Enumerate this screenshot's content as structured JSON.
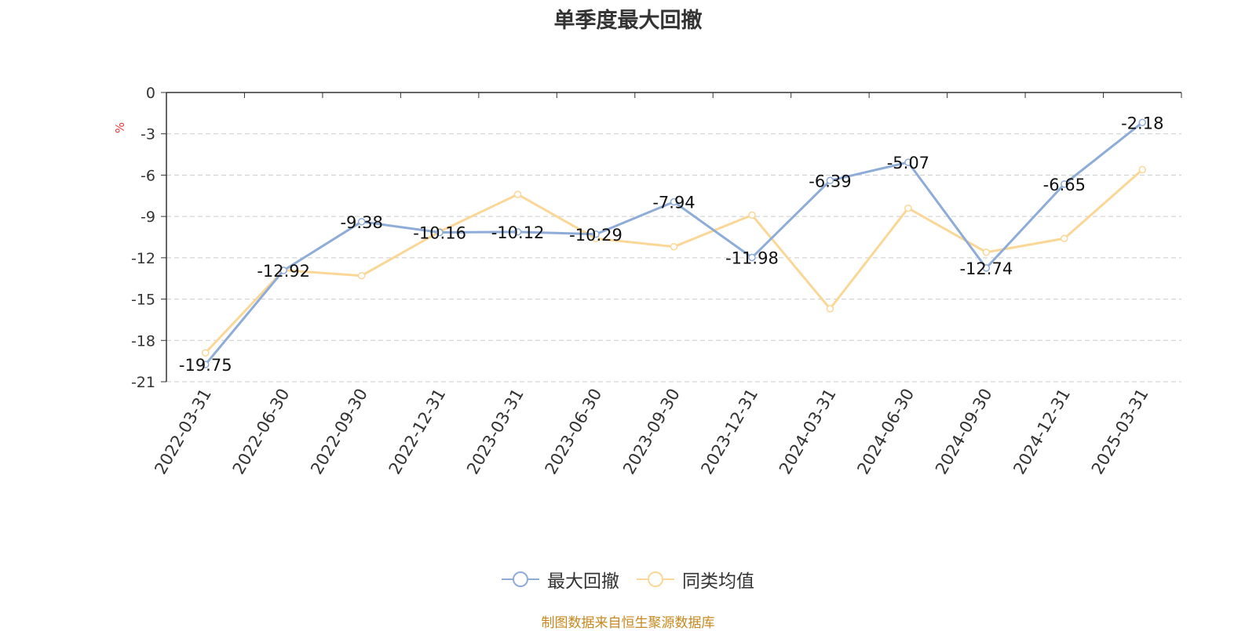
{
  "chart_data": {
    "type": "line",
    "title": "单季度最大回撤",
    "ylabel": "%",
    "xlabel": "",
    "categories": [
      "2022-03-31",
      "2022-06-30",
      "2022-09-30",
      "2022-12-31",
      "2023-03-31",
      "2023-06-30",
      "2023-09-30",
      "2023-12-31",
      "2024-03-31",
      "2024-06-30",
      "2024-09-30",
      "2024-12-31",
      "2025-03-31"
    ],
    "ylim": [
      -21,
      0
    ],
    "yticks": [
      0,
      -3,
      -6,
      -9,
      -12,
      -15,
      -18,
      -21
    ],
    "grid": true,
    "legend_position": "bottom-center",
    "series": [
      {
        "name": "最大回撤",
        "color": "#8eacd8",
        "values": [
          -19.75,
          -12.92,
          -9.38,
          -10.16,
          -10.12,
          -10.29,
          -7.94,
          -11.98,
          -6.39,
          -5.07,
          -12.74,
          -6.65,
          -2.18
        ],
        "labels": [
          "-19.75",
          "-12.92",
          "-9.38",
          "-10.16",
          "-10.12",
          "-10.29",
          "-7.94",
          "-11.98",
          "-6.39",
          "-5.07",
          "-12.74",
          "-6.65",
          "-2.18"
        ]
      },
      {
        "name": "同类均值",
        "color": "#fad797",
        "values": [
          -18.9,
          -12.9,
          -13.3,
          -10.1,
          -7.4,
          -10.6,
          -11.2,
          -8.9,
          -15.7,
          -8.4,
          -11.6,
          -10.6,
          -5.6
        ]
      }
    ]
  },
  "footer": {
    "source": "制图数据来自恒生聚源数据库"
  }
}
